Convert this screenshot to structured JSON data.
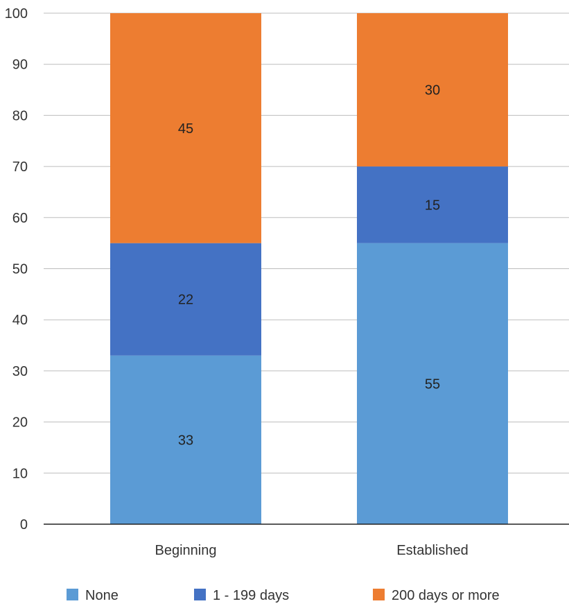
{
  "chart_data": {
    "type": "bar",
    "stacked": true,
    "title": "",
    "xlabel": "",
    "ylabel": "",
    "categories": [
      "Beginning",
      "Established"
    ],
    "series": [
      {
        "name": "None",
        "values": [
          33,
          55
        ],
        "color": "#5B9BD5"
      },
      {
        "name": "1 - 199 days",
        "values": [
          22,
          15
        ],
        "color": "#4472C4"
      },
      {
        "name": "200 days or more",
        "values": [
          45,
          30
        ],
        "color": "#ED7D31"
      }
    ],
    "ylim": [
      0,
      100
    ],
    "yticks": [
      0,
      10,
      20,
      30,
      40,
      50,
      60,
      70,
      80,
      90,
      100
    ],
    "grid": true,
    "data_labels": true,
    "legend_position": "bottom"
  }
}
